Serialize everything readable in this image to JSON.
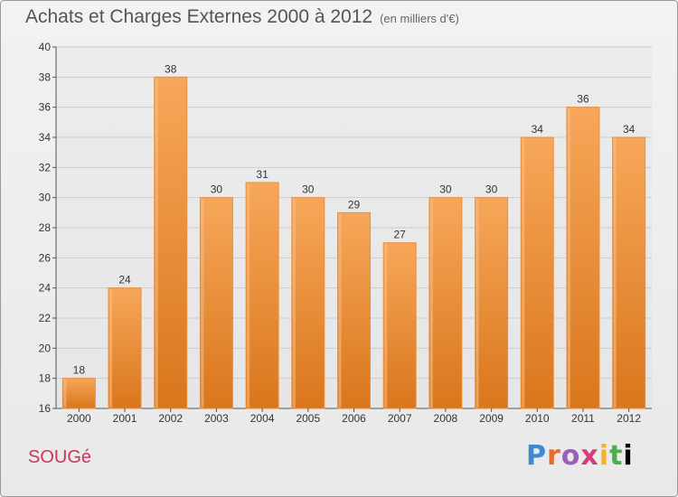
{
  "title": "Achats et Charges Externes 2000 à 2012",
  "subtitle": "(en milliers d'€)",
  "commune": "SOUGé",
  "logo_text": "Proxiti",
  "colors": {
    "bar": "#f0902e",
    "bar_top": "#f7a75a",
    "bar_bottom": "#d9761c",
    "title": "#555555",
    "commune": "#c8385a",
    "grid": "#cccccc"
  },
  "chart_data": {
    "type": "bar",
    "title": "Achats et Charges Externes 2000 à 2012",
    "subtitle": "(en milliers d'€)",
    "categories": [
      "2000",
      "2001",
      "2002",
      "2003",
      "2004",
      "2005",
      "2006",
      "2007",
      "2008",
      "2009",
      "2010",
      "2011",
      "2012"
    ],
    "values": [
      18,
      24,
      38,
      30,
      31,
      30,
      29,
      27,
      30,
      30,
      34,
      36,
      34
    ],
    "data_labels": [
      "18",
      "24",
      "38",
      "30",
      "31",
      "30",
      "29",
      "27",
      "30",
      "30",
      "34",
      "36",
      "34"
    ],
    "yticks": [
      16,
      18,
      20,
      22,
      24,
      26,
      28,
      30,
      32,
      34,
      36,
      38,
      40
    ],
    "ylim": [
      16,
      40
    ],
    "grid": true,
    "legend": "none"
  }
}
